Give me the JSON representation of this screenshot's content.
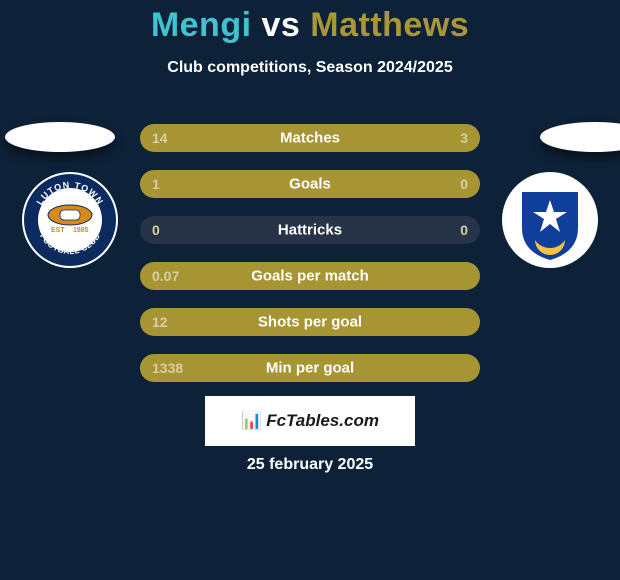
{
  "background_color": "#0d2238",
  "text_color": "#ffffff",
  "title": {
    "player1": "Mengi",
    "vs": "vs",
    "player2": "Matthews",
    "player1_color": "#3fc3cf",
    "vs_color": "#ffffff",
    "player2_color": "#a99636",
    "fontsize": 34
  },
  "subtitle": "Club competitions, Season 2024/2025",
  "avatar": {
    "fill": "#ffffff",
    "shadow": "rgba(0,0,0,0.5)"
  },
  "crests": {
    "left": {
      "name": "luton-town-crest",
      "bg": "#ffffff",
      "ring": "#0b2b5e",
      "top_text": "LUTON TOWN",
      "bottom_text": "FOOTBALL CLUB",
      "ring_text_color": "#ffffff",
      "est_color": "#d68a1a",
      "est": "EST",
      "year": "1885"
    },
    "right": {
      "name": "portsmouth-crest",
      "bg": "#ffffff",
      "shield": "#0f3f9a",
      "star_color": "#ffffff",
      "crescent_color": "#f5c242"
    }
  },
  "bars": {
    "track_color": "#273447",
    "left_color": "#a79432",
    "right_color": "#a79432",
    "text_color": "#ffffff",
    "value_color": "#d9d0a1",
    "rows": [
      {
        "label": "Matches",
        "left": "14",
        "right": "3",
        "left_pct": 78,
        "right_pct": 22
      },
      {
        "label": "Goals",
        "left": "1",
        "right": "0",
        "left_pct": 100,
        "right_pct": 0
      },
      {
        "label": "Hattricks",
        "left": "0",
        "right": "0",
        "left_pct": 0,
        "right_pct": 0
      },
      {
        "label": "Goals per match",
        "left": "0.07",
        "right": "",
        "left_pct": 100,
        "right_pct": 0
      },
      {
        "label": "Shots per goal",
        "left": "12",
        "right": "",
        "left_pct": 100,
        "right_pct": 0
      },
      {
        "label": "Min per goal",
        "left": "1338",
        "right": "",
        "left_pct": 100,
        "right_pct": 0
      }
    ]
  },
  "badge": {
    "bg": "#ffffff",
    "text": "FcTables.com",
    "text_color": "#1a1a1a",
    "icon": "📊"
  },
  "date": "25 february 2025"
}
